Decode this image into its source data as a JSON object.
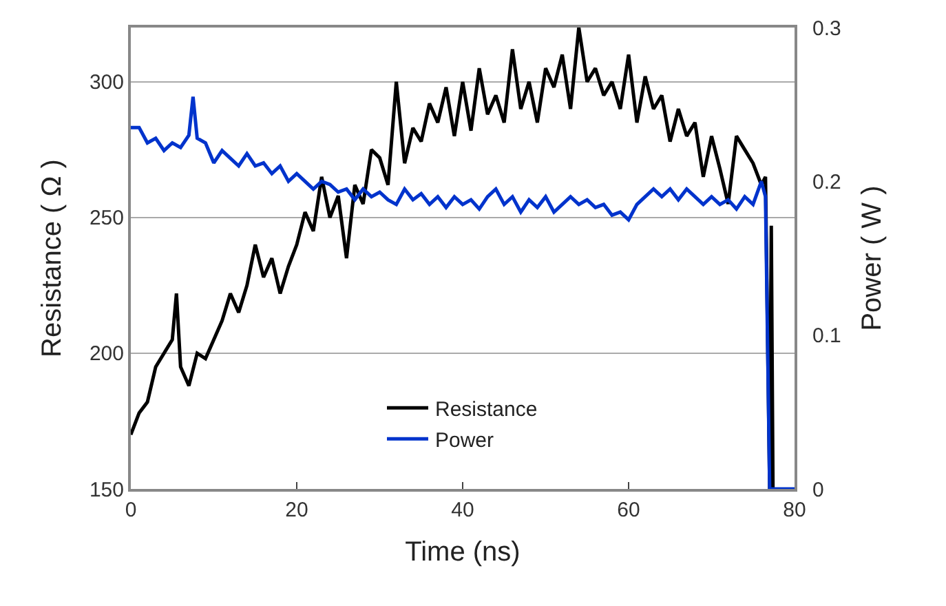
{
  "chart_data": {
    "type": "line",
    "xlabel": "Time (ns)",
    "ylabel": "Resistance ( Ω )",
    "y2label": "Power ( W )",
    "xlim": [
      0,
      80
    ],
    "xticks": [
      0,
      20,
      40,
      60,
      80
    ],
    "ylim": [
      150,
      320
    ],
    "yticks": [
      150,
      200,
      250,
      300
    ],
    "y2lim": [
      0,
      0.3
    ],
    "y2ticks": [
      0,
      0.1,
      0.2,
      0.3
    ],
    "grid": "y",
    "legend": "bottom",
    "line_style": "solid",
    "marker": "none",
    "series": [
      {
        "name": "Resistance",
        "color": "#000000",
        "x": [
          0,
          1,
          2,
          3,
          4,
          5,
          5.5,
          6,
          7,
          8,
          9,
          10,
          11,
          12,
          13,
          14,
          15,
          16,
          17,
          18,
          19,
          20,
          21,
          22,
          23,
          24,
          25,
          26,
          27,
          28,
          29,
          30,
          31,
          32,
          33,
          34,
          35,
          36,
          37,
          38,
          39,
          40,
          41,
          42,
          43,
          44,
          45,
          46,
          47,
          48,
          49,
          50,
          51,
          52,
          53,
          54,
          55,
          56,
          57,
          58,
          59,
          60,
          61,
          62,
          63,
          64,
          65,
          66,
          67,
          68,
          69,
          70,
          71,
          72,
          73,
          74,
          75,
          76,
          76.5,
          77,
          77.2,
          77.4
        ],
        "values": [
          170,
          178,
          182,
          195,
          200,
          205,
          222,
          195,
          188,
          200,
          198,
          205,
          212,
          222,
          215,
          225,
          240,
          228,
          235,
          222,
          232,
          240,
          252,
          245,
          265,
          250,
          258,
          235,
          262,
          255,
          275,
          272,
          262,
          300,
          270,
          283,
          278,
          292,
          285,
          298,
          280,
          300,
          282,
          305,
          288,
          295,
          285,
          312,
          290,
          300,
          285,
          305,
          298,
          310,
          290,
          320,
          300,
          305,
          295,
          300,
          290,
          310,
          285,
          302,
          290,
          295,
          278,
          290,
          280,
          285,
          265,
          280,
          268,
          255,
          280,
          275,
          270,
          262,
          265,
          150,
          247,
          150
        ]
      },
      {
        "name": "Power",
        "color": "#0033cc",
        "axis": "y2",
        "x": [
          0,
          1,
          2,
          3,
          4,
          5,
          6,
          7,
          7.5,
          8,
          9,
          10,
          11,
          12,
          13,
          14,
          15,
          16,
          17,
          18,
          19,
          20,
          21,
          22,
          23,
          24,
          25,
          26,
          27,
          28,
          29,
          30,
          31,
          32,
          33,
          34,
          35,
          36,
          37,
          38,
          39,
          40,
          41,
          42,
          43,
          44,
          45,
          46,
          47,
          48,
          49,
          50,
          51,
          52,
          53,
          54,
          55,
          56,
          57,
          58,
          59,
          60,
          61,
          62,
          63,
          64,
          65,
          66,
          67,
          68,
          69,
          70,
          71,
          72,
          73,
          74,
          75,
          76,
          76.5,
          77,
          80
        ],
        "values": [
          0.235,
          0.235,
          0.225,
          0.228,
          0.22,
          0.225,
          0.222,
          0.23,
          0.255,
          0.228,
          0.225,
          0.212,
          0.22,
          0.215,
          0.21,
          0.218,
          0.21,
          0.212,
          0.205,
          0.21,
          0.2,
          0.205,
          0.2,
          0.195,
          0.2,
          0.198,
          0.193,
          0.195,
          0.188,
          0.195,
          0.19,
          0.193,
          0.188,
          0.185,
          0.195,
          0.188,
          0.192,
          0.185,
          0.19,
          0.183,
          0.19,
          0.185,
          0.188,
          0.182,
          0.19,
          0.195,
          0.185,
          0.19,
          0.18,
          0.188,
          0.183,
          0.19,
          0.18,
          0.185,
          0.19,
          0.185,
          0.188,
          0.183,
          0.185,
          0.178,
          0.18,
          0.175,
          0.185,
          0.19,
          0.195,
          0.19,
          0.195,
          0.188,
          0.195,
          0.19,
          0.185,
          0.19,
          0.185,
          0.188,
          0.182,
          0.19,
          0.185,
          0.2,
          0.19,
          0,
          0
        ]
      }
    ]
  }
}
